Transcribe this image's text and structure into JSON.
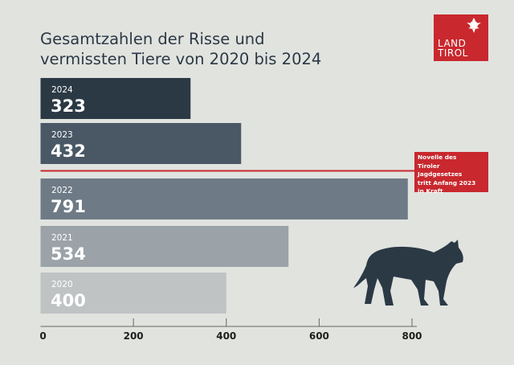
{
  "chart_data": {
    "type": "bar",
    "orientation": "horizontal",
    "title": "Gesamtzahlen der Risse und vermissten Tiere von 2020 bis 2024",
    "categories": [
      "2024",
      "2023",
      "2022",
      "2021",
      "2020"
    ],
    "values": [
      323,
      432,
      791,
      534,
      400
    ],
    "colors": [
      "#2b3945",
      "#4a5866",
      "#6e7b86",
      "#9ba3a9",
      "#bfc3c4"
    ],
    "xlim": [
      0,
      800
    ],
    "xticks": [
      0,
      200,
      400,
      600,
      800
    ],
    "grid": false,
    "annotation": {
      "text": "Novelle des Tiroler Jagdgesetzes tritt Anfang 2023 in Kraft",
      "between": [
        "2023",
        "2022"
      ],
      "color": "#c8282e"
    }
  },
  "logo": {
    "line1": "LAND",
    "line2": "TIROL",
    "color": "#c8282e"
  },
  "title_lines": [
    "Gesamtzahlen der Risse und",
    "vermissten Tiere von 2020 bis 2024"
  ],
  "note_lines": [
    "Novelle des",
    "Tiroler Jagdgesetzes",
    "tritt Anfang 2023",
    "in Kraft"
  ],
  "decoration": "wolf-silhouette"
}
